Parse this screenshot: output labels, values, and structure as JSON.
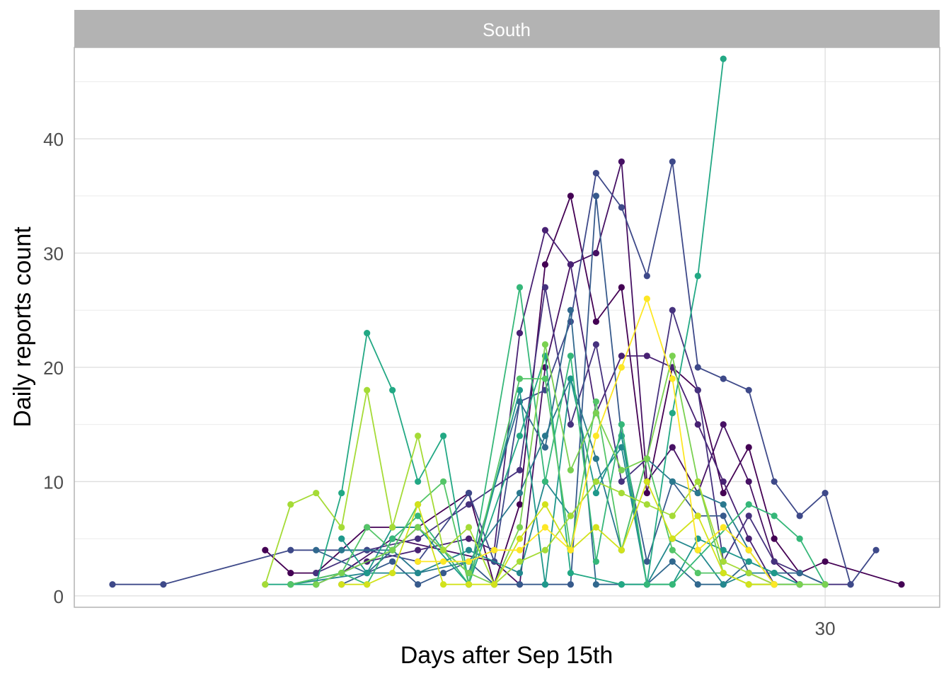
{
  "chart_data": {
    "type": "line",
    "facet_label": "South",
    "xlabel": "Days after Sep 15th",
    "ylabel": "Daily reports count",
    "xlim": [
      0.5,
      34.5
    ],
    "ylim": [
      -1,
      48
    ],
    "x_ticks": [
      30
    ],
    "y_ticks": [
      0,
      10,
      20,
      30,
      40
    ],
    "grid": true,
    "legend": "none",
    "series": [
      {
        "color": "#440154",
        "points": [
          [
            8,
            4
          ],
          [
            9,
            2
          ],
          [
            10,
            2
          ],
          [
            12,
            6
          ],
          [
            14,
            6
          ],
          [
            16,
            9
          ],
          [
            17,
            1
          ],
          [
            18,
            8
          ],
          [
            19,
            29
          ],
          [
            20,
            35
          ],
          [
            21,
            24
          ],
          [
            22,
            27
          ],
          [
            23,
            9
          ],
          [
            24,
            20
          ],
          [
            25,
            18
          ],
          [
            26,
            9
          ],
          [
            27,
            13
          ],
          [
            28,
            5
          ],
          [
            29,
            2
          ],
          [
            30,
            3
          ],
          [
            33,
            1
          ]
        ]
      },
      {
        "color": "#471164",
        "points": [
          [
            9,
            1
          ],
          [
            11,
            2
          ],
          [
            13,
            5
          ],
          [
            15,
            4
          ],
          [
            17,
            3
          ],
          [
            18,
            1
          ],
          [
            19,
            20
          ],
          [
            20,
            29
          ],
          [
            21,
            30
          ],
          [
            22,
            38
          ],
          [
            23,
            10
          ],
          [
            24,
            13
          ],
          [
            25,
            9
          ],
          [
            26,
            15
          ],
          [
            27,
            10
          ],
          [
            28,
            3
          ],
          [
            29,
            1
          ]
        ]
      },
      {
        "color": "#482173",
        "points": [
          [
            10,
            1
          ],
          [
            12,
            3
          ],
          [
            14,
            4
          ],
          [
            16,
            5
          ],
          [
            17,
            4
          ],
          [
            18,
            23
          ],
          [
            19,
            32
          ],
          [
            20,
            29
          ],
          [
            21,
            16
          ],
          [
            22,
            21
          ],
          [
            23,
            21
          ],
          [
            24,
            20
          ],
          [
            25,
            15
          ],
          [
            26,
            10
          ],
          [
            27,
            5
          ],
          [
            28,
            1
          ]
        ]
      },
      {
        "color": "#46327e",
        "points": [
          [
            10,
            2
          ],
          [
            12,
            4
          ],
          [
            14,
            5
          ],
          [
            16,
            8
          ],
          [
            18,
            11
          ],
          [
            19,
            27
          ],
          [
            20,
            15
          ],
          [
            21,
            22
          ],
          [
            22,
            10
          ],
          [
            23,
            12
          ],
          [
            24,
            25
          ],
          [
            25,
            18
          ],
          [
            26,
            3
          ],
          [
            27,
            7
          ],
          [
            28,
            3
          ],
          [
            29,
            2
          ],
          [
            30,
            1
          ],
          [
            31,
            1
          ]
        ]
      },
      {
        "color": "#3e4989",
        "points": [
          [
            2,
            1
          ],
          [
            4,
            1
          ],
          [
            9,
            4
          ],
          [
            12,
            4
          ],
          [
            14,
            3
          ],
          [
            16,
            9
          ],
          [
            17,
            3
          ],
          [
            18,
            17
          ],
          [
            19,
            18
          ],
          [
            20,
            24
          ],
          [
            21,
            37
          ],
          [
            22,
            34
          ],
          [
            23,
            28
          ],
          [
            24,
            38
          ],
          [
            25,
            20
          ],
          [
            26,
            19
          ],
          [
            27,
            18
          ],
          [
            28,
            10
          ],
          [
            29,
            7
          ],
          [
            30,
            9
          ],
          [
            31,
            1
          ],
          [
            32,
            4
          ]
        ]
      },
      {
        "color": "#375a8c",
        "points": [
          [
            11,
            1
          ],
          [
            13,
            3
          ],
          [
            14,
            1
          ],
          [
            15,
            2
          ],
          [
            16,
            3
          ],
          [
            17,
            1
          ],
          [
            18,
            1
          ],
          [
            19,
            1
          ],
          [
            20,
            1
          ],
          [
            21,
            35
          ],
          [
            22,
            14
          ],
          [
            23,
            3
          ],
          [
            24,
            10
          ],
          [
            25,
            7
          ],
          [
            26,
            7
          ],
          [
            27,
            2
          ],
          [
            28,
            1
          ]
        ]
      },
      {
        "color": "#31688e",
        "points": [
          [
            10,
            4
          ],
          [
            12,
            2
          ],
          [
            14,
            6
          ],
          [
            16,
            2
          ],
          [
            18,
            17
          ],
          [
            19,
            13
          ],
          [
            20,
            25
          ],
          [
            21,
            1
          ],
          [
            22,
            1
          ],
          [
            23,
            1
          ],
          [
            24,
            3
          ],
          [
            25,
            1
          ],
          [
            26,
            1
          ],
          [
            27,
            3
          ],
          [
            28,
            2
          ],
          [
            29,
            2
          ],
          [
            30,
            1
          ]
        ]
      },
      {
        "color": "#2a788e",
        "points": [
          [
            11,
            4
          ],
          [
            13,
            4
          ],
          [
            14,
            2
          ],
          [
            16,
            3
          ],
          [
            18,
            9
          ],
          [
            19,
            14
          ],
          [
            20,
            19
          ],
          [
            21,
            12
          ],
          [
            22,
            4
          ],
          [
            23,
            12
          ],
          [
            24,
            10
          ],
          [
            25,
            9
          ],
          [
            26,
            8
          ],
          [
            27,
            4
          ],
          [
            28,
            1
          ],
          [
            29,
            1
          ]
        ]
      },
      {
        "color": "#23888e",
        "points": [
          [
            9,
            1
          ],
          [
            12,
            2
          ],
          [
            14,
            2
          ],
          [
            16,
            4
          ],
          [
            18,
            2
          ],
          [
            19,
            10
          ],
          [
            20,
            7
          ],
          [
            21,
            10
          ],
          [
            22,
            13
          ],
          [
            23,
            1
          ],
          [
            24,
            5
          ],
          [
            25,
            4
          ],
          [
            26,
            1
          ],
          [
            27,
            2
          ],
          [
            28,
            2
          ],
          [
            29,
            1
          ]
        ]
      },
      {
        "color": "#1f988b",
        "points": [
          [
            11,
            5
          ],
          [
            12,
            2
          ],
          [
            13,
            6
          ],
          [
            14,
            6
          ],
          [
            16,
            1
          ],
          [
            18,
            18
          ],
          [
            19,
            1
          ],
          [
            20,
            19
          ],
          [
            21,
            9
          ],
          [
            22,
            14
          ],
          [
            23,
            1
          ],
          [
            24,
            1
          ],
          [
            25,
            5
          ],
          [
            26,
            4
          ],
          [
            27,
            3
          ],
          [
            28,
            2
          ],
          [
            29,
            1
          ]
        ]
      },
      {
        "color": "#22a884",
        "points": [
          [
            8,
            1
          ],
          [
            10,
            1
          ],
          [
            11,
            9
          ],
          [
            12,
            23
          ],
          [
            13,
            18
          ],
          [
            14,
            10
          ],
          [
            15,
            14
          ],
          [
            16,
            1
          ],
          [
            18,
            14
          ],
          [
            19,
            21
          ],
          [
            20,
            2
          ],
          [
            22,
            1
          ],
          [
            23,
            1
          ],
          [
            24,
            16
          ],
          [
            25,
            28
          ],
          [
            26,
            47
          ]
        ]
      },
      {
        "color": "#35b779",
        "points": [
          [
            9,
            1
          ],
          [
            11,
            2
          ],
          [
            12,
            1
          ],
          [
            13,
            5
          ],
          [
            14,
            7
          ],
          [
            16,
            1
          ],
          [
            18,
            27
          ],
          [
            19,
            10
          ],
          [
            20,
            21
          ],
          [
            21,
            3
          ],
          [
            22,
            15
          ],
          [
            23,
            1
          ],
          [
            24,
            1
          ],
          [
            27,
            8
          ],
          [
            28,
            7
          ],
          [
            29,
            5
          ],
          [
            30,
            1
          ]
        ]
      },
      {
        "color": "#54c568",
        "points": [
          [
            9,
            1
          ],
          [
            11,
            2
          ],
          [
            12,
            6
          ],
          [
            13,
            4
          ],
          [
            14,
            8
          ],
          [
            15,
            10
          ],
          [
            16,
            1
          ],
          [
            18,
            19
          ],
          [
            19,
            19
          ],
          [
            20,
            4
          ],
          [
            21,
            17
          ],
          [
            22,
            4
          ],
          [
            23,
            12
          ],
          [
            24,
            4
          ],
          [
            25,
            2
          ],
          [
            26,
            2
          ],
          [
            27,
            1
          ],
          [
            28,
            1
          ]
        ]
      },
      {
        "color": "#7ad151",
        "points": [
          [
            10,
            1
          ],
          [
            11,
            2
          ],
          [
            13,
            4
          ],
          [
            14,
            6
          ],
          [
            15,
            4
          ],
          [
            16,
            2
          ],
          [
            17,
            1
          ],
          [
            18,
            6
          ],
          [
            19,
            22
          ],
          [
            20,
            11
          ],
          [
            21,
            16
          ],
          [
            22,
            11
          ],
          [
            23,
            12
          ],
          [
            24,
            21
          ],
          [
            25,
            10
          ],
          [
            26,
            2
          ],
          [
            27,
            1
          ],
          [
            28,
            1
          ],
          [
            29,
            1
          ],
          [
            30,
            1
          ]
        ]
      },
      {
        "color": "#a5db36",
        "points": [
          [
            8,
            1
          ],
          [
            9,
            8
          ],
          [
            10,
            9
          ],
          [
            11,
            6
          ],
          [
            12,
            18
          ],
          [
            13,
            6
          ],
          [
            14,
            14
          ],
          [
            15,
            4
          ],
          [
            16,
            6
          ],
          [
            17,
            1
          ],
          [
            18,
            3
          ],
          [
            19,
            4
          ],
          [
            20,
            7
          ],
          [
            21,
            10
          ],
          [
            22,
            9
          ],
          [
            23,
            8
          ],
          [
            24,
            7
          ],
          [
            25,
            10
          ],
          [
            26,
            3
          ],
          [
            27,
            2
          ],
          [
            28,
            1
          ]
        ]
      },
      {
        "color": "#d2e21b",
        "points": [
          [
            11,
            1
          ],
          [
            12,
            1
          ],
          [
            13,
            2
          ],
          [
            14,
            8
          ],
          [
            15,
            1
          ],
          [
            16,
            1
          ],
          [
            17,
            1
          ],
          [
            18,
            5
          ],
          [
            19,
            8
          ],
          [
            20,
            4
          ],
          [
            21,
            6
          ],
          [
            22,
            4
          ],
          [
            23,
            10
          ],
          [
            24,
            5
          ],
          [
            25,
            7
          ],
          [
            26,
            2
          ],
          [
            27,
            1
          ],
          [
            28,
            1
          ]
        ]
      },
      {
        "color": "#fde725",
        "points": [
          [
            14,
            3
          ],
          [
            15,
            3
          ],
          [
            16,
            3
          ],
          [
            17,
            4
          ],
          [
            18,
            4
          ],
          [
            19,
            6
          ],
          [
            20,
            4
          ],
          [
            21,
            14
          ],
          [
            22,
            20
          ],
          [
            23,
            26
          ],
          [
            24,
            19
          ],
          [
            25,
            4
          ],
          [
            26,
            6
          ],
          [
            27,
            4
          ],
          [
            28,
            1
          ]
        ]
      }
    ]
  }
}
